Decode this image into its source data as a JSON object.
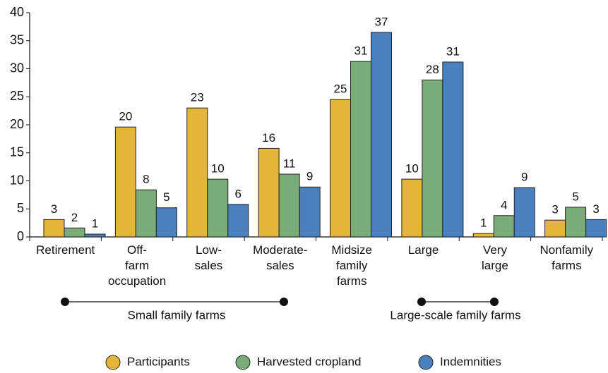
{
  "chart_data": {
    "type": "bar",
    "categories": [
      "Retirement",
      "Off-\nfarm\noccupation",
      "Low-\nsales",
      "Moderate-\nsales",
      "Midsize\nfamily\nfarms",
      "Large",
      "Very\nlarge",
      "Nonfamily\nfarms"
    ],
    "series": [
      {
        "name": "Participants",
        "color": "#e3b53a",
        "values": [
          3.1,
          19.6,
          23,
          15.8,
          24.5,
          10.3,
          0.6,
          3.0
        ],
        "value_labels": [
          "3",
          "20",
          "23",
          "16",
          "25",
          "10",
          "1",
          "3"
        ]
      },
      {
        "name": "Harvested cropland",
        "color": "#7aab78",
        "values": [
          1.6,
          8.4,
          10.3,
          11.2,
          31.3,
          28,
          3.8,
          5.3
        ],
        "value_labels": [
          "2",
          "8",
          "10",
          "11",
          "31",
          "28",
          "4",
          "5"
        ]
      },
      {
        "name": "Indemnities",
        "color": "#4a81bd",
        "values": [
          0.5,
          5.2,
          5.8,
          8.9,
          36.5,
          31.2,
          8.8,
          3.1
        ],
        "value_labels": [
          "1",
          "5",
          "6",
          "9",
          "37",
          "31",
          "9",
          "3"
        ]
      }
    ],
    "ylim": [
      0,
      40
    ],
    "yticks": [
      0,
      5,
      10,
      15,
      20,
      25,
      30,
      35,
      40
    ],
    "grid": false,
    "annotations": [
      "Small family farms",
      "Large-scale family farms"
    ],
    "legend": "bottom"
  }
}
